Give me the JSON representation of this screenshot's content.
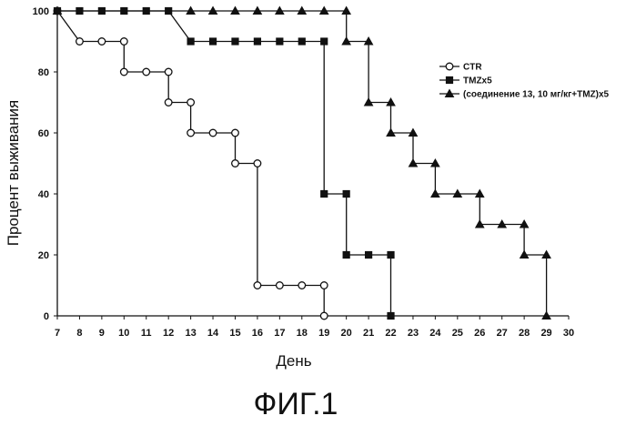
{
  "chart_data": {
    "type": "line",
    "step": true,
    "xlabel": "День",
    "ylabel": "Процент выживания",
    "xlim": [
      7,
      30
    ],
    "ylim": [
      0,
      100
    ],
    "x_tick_labels": [
      "7",
      "8",
      "9",
      "10",
      "11",
      "12",
      "13",
      "14",
      "15",
      "16",
      "17",
      "18",
      "19",
      "20",
      "21",
      "22",
      "23",
      "24",
      "25",
      "26",
      "27",
      "28",
      "29",
      "30"
    ],
    "y_tick_labels": [
      "0",
      "20",
      "40",
      "60",
      "80",
      "100"
    ],
    "legend_position": "top-right",
    "grid": false,
    "series": [
      {
        "name": "CTR",
        "marker": "circle-open",
        "points": [
          [
            7,
            100
          ],
          [
            8,
            90
          ],
          [
            9,
            90
          ],
          [
            10,
            90
          ],
          [
            10,
            80
          ],
          [
            11,
            80
          ],
          [
            12,
            80
          ],
          [
            12,
            70
          ],
          [
            13,
            70
          ],
          [
            13,
            60
          ],
          [
            14,
            60
          ],
          [
            15,
            60
          ],
          [
            15,
            50
          ],
          [
            16,
            50
          ],
          [
            16,
            10
          ],
          [
            17,
            10
          ],
          [
            18,
            10
          ],
          [
            19,
            10
          ],
          [
            19,
            0
          ]
        ]
      },
      {
        "name": "TMZx5",
        "marker": "square-filled",
        "points": [
          [
            7,
            100
          ],
          [
            8,
            100
          ],
          [
            9,
            100
          ],
          [
            10,
            100
          ],
          [
            11,
            100
          ],
          [
            12,
            100
          ],
          [
            13,
            90
          ],
          [
            14,
            90
          ],
          [
            15,
            90
          ],
          [
            16,
            90
          ],
          [
            17,
            90
          ],
          [
            18,
            90
          ],
          [
            19,
            90
          ],
          [
            19,
            40
          ],
          [
            20,
            40
          ],
          [
            20,
            20
          ],
          [
            21,
            20
          ],
          [
            22,
            20
          ],
          [
            22,
            0
          ]
        ]
      },
      {
        "name": "(соединение 13, 10 мг/кг+TMZ)x5",
        "marker": "triangle-filled",
        "points": [
          [
            7,
            100
          ],
          [
            13,
            100
          ],
          [
            14,
            100
          ],
          [
            15,
            100
          ],
          [
            16,
            100
          ],
          [
            17,
            100
          ],
          [
            18,
            100
          ],
          [
            19,
            100
          ],
          [
            20,
            100
          ],
          [
            20,
            90
          ],
          [
            21,
            90
          ],
          [
            21,
            70
          ],
          [
            22,
            70
          ],
          [
            22,
            60
          ],
          [
            23,
            60
          ],
          [
            23,
            50
          ],
          [
            24,
            50
          ],
          [
            24,
            40
          ],
          [
            25,
            40
          ],
          [
            26,
            40
          ],
          [
            26,
            30
          ],
          [
            27,
            30
          ],
          [
            28,
            30
          ],
          [
            28,
            20
          ],
          [
            29,
            20
          ],
          [
            29,
            0
          ]
        ]
      }
    ]
  },
  "caption": "ФИГ.1"
}
